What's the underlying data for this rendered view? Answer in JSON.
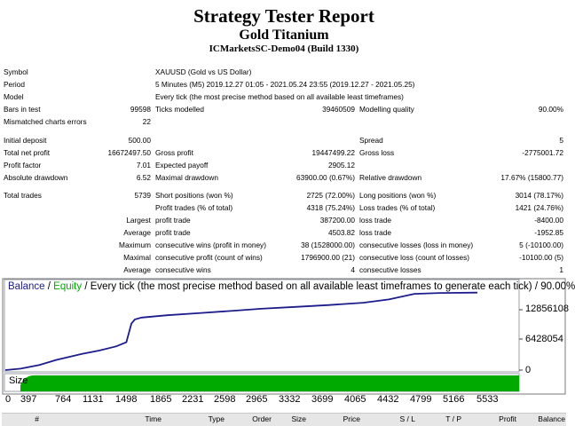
{
  "report": {
    "title": "Strategy Tester Report",
    "expert": "Gold Titanium",
    "server": "ICMarketsSC-Demo04 (Build 1330)"
  },
  "rows": [
    {
      "top": 74,
      "c1": "Symbol",
      "c2": "",
      "c3": "XAUUSD (Gold vs US Dollar)",
      "c4": "",
      "c5": "",
      "c6": ""
    },
    {
      "top": 88,
      "c1": "Period",
      "c2": "",
      "c3": "5 Minutes (M5) 2019.12.27 01:05 - 2021.05.24 23:55 (2019.12.27 - 2021.05.25)",
      "c4": "",
      "c5": "",
      "c6": ""
    },
    {
      "top": 102,
      "c1": "Model",
      "c2": "",
      "c3": "Every tick (the most precise method based on all available least timeframes)",
      "c4": "",
      "c5": "",
      "c6": ""
    },
    {
      "top": 116,
      "c1": "Bars in test",
      "c2": "99598",
      "c3": "Ticks modelled",
      "c4": "39460509",
      "c5": "Modelling quality",
      "c6": "90.00%"
    },
    {
      "top": 130,
      "c1": "Mismatched charts errors",
      "c2": "22",
      "c3": "",
      "c4": "",
      "c5": "",
      "c6": ""
    },
    {
      "top": 151,
      "c1": "Initial deposit",
      "c2": "500.00",
      "c3": "",
      "c4": "",
      "c5": "Spread",
      "c6": "5"
    },
    {
      "top": 165,
      "c1": "Total net profit",
      "c2": "16672497.50",
      "c3": "Gross profit",
      "c4": "19447499.22",
      "c5": "Gross loss",
      "c6": "-2775001.72"
    },
    {
      "top": 179,
      "c1": "Profit factor",
      "c2": "7.01",
      "c3": "Expected payoff",
      "c4": "2905.12",
      "c5": "",
      "c6": ""
    },
    {
      "top": 193,
      "c1": "Absolute drawdown",
      "c2": "6.52",
      "c3": "Maximal drawdown",
      "c4": "63900.00 (0.67%)",
      "c5": "Relative drawdown",
      "c6": "17.67% (15800.77)"
    },
    {
      "top": 213,
      "c1": "Total trades",
      "c2": "5739",
      "c3": "Short positions (won %)",
      "c4": "2725 (72.00%)",
      "c5": "Long positions (won %)",
      "c6": "3014 (78.17%)"
    },
    {
      "top": 227,
      "c1": "",
      "c2": "",
      "c3": "Profit trades (% of total)",
      "c4": "4318 (75.24%)",
      "c5": "Loss trades (% of total)",
      "c6": "1421 (24.76%)"
    },
    {
      "top": 241,
      "c1": "",
      "c2": "Largest",
      "c3": "profit trade",
      "c4": "387200.00",
      "c5": "loss trade",
      "c6": "-8400.00"
    },
    {
      "top": 255,
      "c1": "",
      "c2": "Average",
      "c3": "profit trade",
      "c4": "4503.82",
      "c5": "loss trade",
      "c6": "-1952.85"
    },
    {
      "top": 269,
      "c1": "",
      "c2": "Maximum",
      "c3": "consecutive wins (profit in money)",
      "c4": "38 (1528000.00)",
      "c5": "consecutive losses (loss in money)",
      "c6": "5 (-10100.00)"
    },
    {
      "top": 283,
      "c1": "",
      "c2": "Maximal",
      "c3": "consecutive profit (count of wins)",
      "c4": "1796900.00 (21)",
      "c5": "consecutive loss (count of losses)",
      "c6": "-10100.00 (5)"
    },
    {
      "top": 297,
      "c1": "",
      "c2": "Average",
      "c3": "consecutive wins",
      "c4": "4",
      "c5": "consecutive losses",
      "c6": "1"
    }
  ],
  "chart": {
    "legend_balance": "Balance",
    "legend_sep": " / ",
    "legend_equity": "Equity",
    "legend_rest": " / Every tick (the most precise method based on all available least timeframes to generate each tick) / 90.00%",
    "y_labels": [
      "12856108",
      "6428054",
      "0"
    ],
    "size_label": "Size",
    "x_labels": [
      "0",
      "397",
      "764",
      "1131",
      "1498",
      "1865",
      "2231",
      "2598",
      "2965",
      "3332",
      "3699",
      "4065",
      "4432",
      "4799",
      "5166",
      "5533"
    ],
    "colors": {
      "balance": "#1c1c8c",
      "size_fill": "#00aa00",
      "legend_equity": "#00aa00",
      "legend_balance": "#1c1c8c"
    },
    "chart_data": {
      "type": "line",
      "ylim": [
        0,
        19284162
      ],
      "x": [
        0,
        180,
        400,
        600,
        900,
        1100,
        1300,
        1420,
        1480,
        1520,
        1600,
        1900,
        2300,
        2700,
        3000,
        3400,
        3800,
        4200,
        4500,
        4800,
        5100,
        5539
      ],
      "y": [
        0,
        300000,
        1100000,
        2200000,
        3500000,
        4200000,
        5100000,
        6000000,
        10000000,
        10900000,
        11300000,
        11800000,
        12300000,
        12800000,
        13200000,
        13600000,
        14000000,
        14500000,
        15200000,
        16400000,
        16600000,
        16672497
      ]
    }
  },
  "columns": [
    "#",
    "Time",
    "Type",
    "Order",
    "Size",
    "Price",
    "S / L",
    "T / P",
    "Profit",
    "Balance"
  ]
}
